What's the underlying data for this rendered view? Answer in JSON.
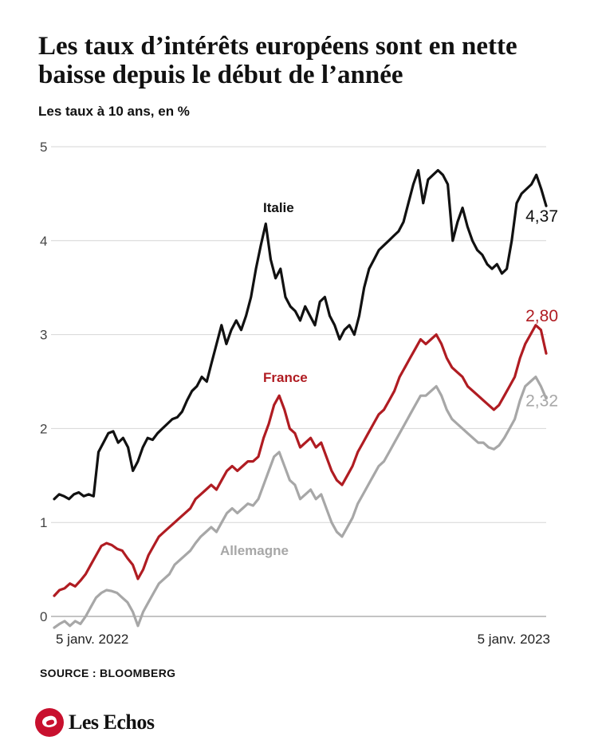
{
  "page": {
    "title": "Les taux d’intérêts européens sont en nette baisse depuis le début de l’année",
    "subtitle": "Les taux à 10 ans, en %",
    "source": "SOURCE : BLOOMBERG",
    "brand": "Les Echos"
  },
  "chart_data": {
    "type": "line",
    "title": "",
    "ylabel": "",
    "xlabel": "",
    "ylim": [
      0,
      5
    ],
    "yticks": [
      "0",
      "1",
      "2",
      "3",
      "4",
      "5"
    ],
    "x_labels": [
      "5 janv. 2022",
      "5 janv. 2023"
    ],
    "grid": true,
    "legend": "labels-inline",
    "series": [
      {
        "name": "Italie",
        "color": "#111111",
        "end_label": "4,37",
        "values": [
          1.25,
          1.3,
          1.28,
          1.25,
          1.3,
          1.32,
          1.28,
          1.3,
          1.28,
          1.75,
          1.85,
          1.95,
          1.97,
          1.85,
          1.9,
          1.8,
          1.55,
          1.65,
          1.8,
          1.9,
          1.88,
          1.95,
          2.0,
          2.05,
          2.1,
          2.12,
          2.18,
          2.3,
          2.4,
          2.45,
          2.55,
          2.5,
          2.7,
          2.9,
          3.1,
          2.9,
          3.05,
          3.15,
          3.05,
          3.2,
          3.4,
          3.7,
          3.95,
          4.18,
          3.8,
          3.6,
          3.7,
          3.4,
          3.3,
          3.25,
          3.15,
          3.3,
          3.2,
          3.1,
          3.35,
          3.4,
          3.2,
          3.1,
          2.95,
          3.05,
          3.1,
          3.0,
          3.2,
          3.5,
          3.7,
          3.8,
          3.9,
          3.95,
          4.0,
          4.05,
          4.1,
          4.2,
          4.4,
          4.6,
          4.75,
          4.4,
          4.65,
          4.7,
          4.75,
          4.7,
          4.6,
          4.0,
          4.2,
          4.35,
          4.15,
          4.0,
          3.9,
          3.85,
          3.75,
          3.7,
          3.75,
          3.65,
          3.7,
          4.0,
          4.4,
          4.5,
          4.55,
          4.6,
          4.7,
          4.55,
          4.37
        ]
      },
      {
        "name": "France",
        "color": "#b01c22",
        "end_label": "2,80",
        "values": [
          0.22,
          0.28,
          0.3,
          0.35,
          0.32,
          0.38,
          0.45,
          0.55,
          0.65,
          0.75,
          0.78,
          0.76,
          0.72,
          0.7,
          0.62,
          0.55,
          0.4,
          0.5,
          0.65,
          0.75,
          0.85,
          0.9,
          0.95,
          1.0,
          1.05,
          1.1,
          1.15,
          1.25,
          1.3,
          1.35,
          1.4,
          1.35,
          1.45,
          1.55,
          1.6,
          1.55,
          1.6,
          1.65,
          1.65,
          1.7,
          1.9,
          2.05,
          2.25,
          2.35,
          2.2,
          2.0,
          1.95,
          1.8,
          1.85,
          1.9,
          1.8,
          1.85,
          1.7,
          1.55,
          1.45,
          1.4,
          1.5,
          1.6,
          1.75,
          1.85,
          1.95,
          2.05,
          2.15,
          2.2,
          2.3,
          2.4,
          2.55,
          2.65,
          2.75,
          2.85,
          2.95,
          2.9,
          2.95,
          3.0,
          2.9,
          2.75,
          2.65,
          2.6,
          2.55,
          2.45,
          2.4,
          2.35,
          2.3,
          2.25,
          2.2,
          2.25,
          2.35,
          2.45,
          2.55,
          2.75,
          2.9,
          3.0,
          3.1,
          3.05,
          2.8
        ]
      },
      {
        "name": "Allemagne",
        "color": "#a7a7a7",
        "end_label": "2,32",
        "values": [
          -0.12,
          -0.08,
          -0.05,
          -0.1,
          -0.05,
          -0.08,
          0.0,
          0.1,
          0.2,
          0.25,
          0.28,
          0.27,
          0.25,
          0.2,
          0.15,
          0.05,
          -0.1,
          0.05,
          0.15,
          0.25,
          0.35,
          0.4,
          0.45,
          0.55,
          0.6,
          0.65,
          0.7,
          0.78,
          0.85,
          0.9,
          0.95,
          0.9,
          1.0,
          1.1,
          1.15,
          1.1,
          1.15,
          1.2,
          1.18,
          1.25,
          1.4,
          1.55,
          1.7,
          1.75,
          1.6,
          1.45,
          1.4,
          1.25,
          1.3,
          1.35,
          1.25,
          1.3,
          1.15,
          1.0,
          0.9,
          0.85,
          0.95,
          1.05,
          1.2,
          1.3,
          1.4,
          1.5,
          1.6,
          1.65,
          1.75,
          1.85,
          1.95,
          2.05,
          2.15,
          2.25,
          2.35,
          2.35,
          2.4,
          2.45,
          2.35,
          2.2,
          2.1,
          2.05,
          2.0,
          1.95,
          1.9,
          1.85,
          1.85,
          1.8,
          1.78,
          1.82,
          1.9,
          2.0,
          2.1,
          2.3,
          2.45,
          2.5,
          2.55,
          2.45,
          2.32
        ]
      }
    ]
  }
}
